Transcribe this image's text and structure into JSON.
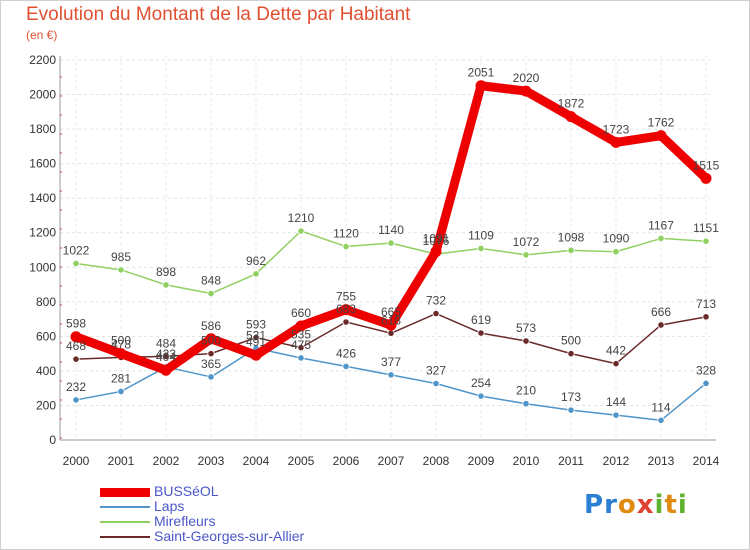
{
  "chart_data": {
    "type": "line",
    "title": "Evolution du Montant de la Dette par Habitant",
    "subtitle": "(en €)",
    "xlabel": "",
    "ylabel": "",
    "x": [
      "2000",
      "2001",
      "2002",
      "2003",
      "2004",
      "2005",
      "2006",
      "2007",
      "2008",
      "2009",
      "2010",
      "2011",
      "2012",
      "2013",
      "2014"
    ],
    "ylim": [
      0,
      2200
    ],
    "yticks": [
      0,
      200,
      400,
      600,
      800,
      1000,
      1200,
      1400,
      1600,
      1800,
      2000,
      2200
    ],
    "grid": true,
    "legend": "bottom-left",
    "series": [
      {
        "name": "Laps",
        "color": "#4f95c9",
        "values": [
          232,
          281,
          423,
          365,
          531,
          475,
          426,
          377,
          327,
          254,
          210,
          173,
          144,
          114,
          328
        ]
      },
      {
        "name": "Mirefleurs",
        "color": "#8fd060",
        "values": [
          1022,
          985,
          898,
          848,
          962,
          1210,
          1120,
          1140,
          1076,
          1109,
          1072,
          1098,
          1090,
          1167,
          1151
        ]
      },
      {
        "name": "Saint-Georges-sur-Allier",
        "color": "#6b2a2a",
        "values": [
          468,
          478,
          484,
          500,
          593,
          535,
          683,
          618,
          732,
          619,
          573,
          500,
          442,
          666,
          713
        ]
      },
      {
        "name": "BUSSéOL",
        "color": "#ee0000",
        "values": [
          598,
          500,
          404,
          586,
          491,
          660,
          755,
          665,
          1091,
          2051,
          2020,
          1872,
          1723,
          1762,
          1515
        ]
      }
    ]
  },
  "legend_order": [
    "BUSSéOL",
    "Laps",
    "Mirefleurs",
    "Saint-Georges-sur-Allier"
  ],
  "logo": {
    "text": "Proxiti",
    "letters": [
      "P",
      "r",
      "o",
      "x",
      "i",
      "t",
      "i"
    ],
    "colors": [
      "#2a7fd0",
      "#2a7fd0",
      "#e08a10",
      "#e04030",
      "#60b030",
      "#e08a10",
      "#60b030"
    ]
  }
}
